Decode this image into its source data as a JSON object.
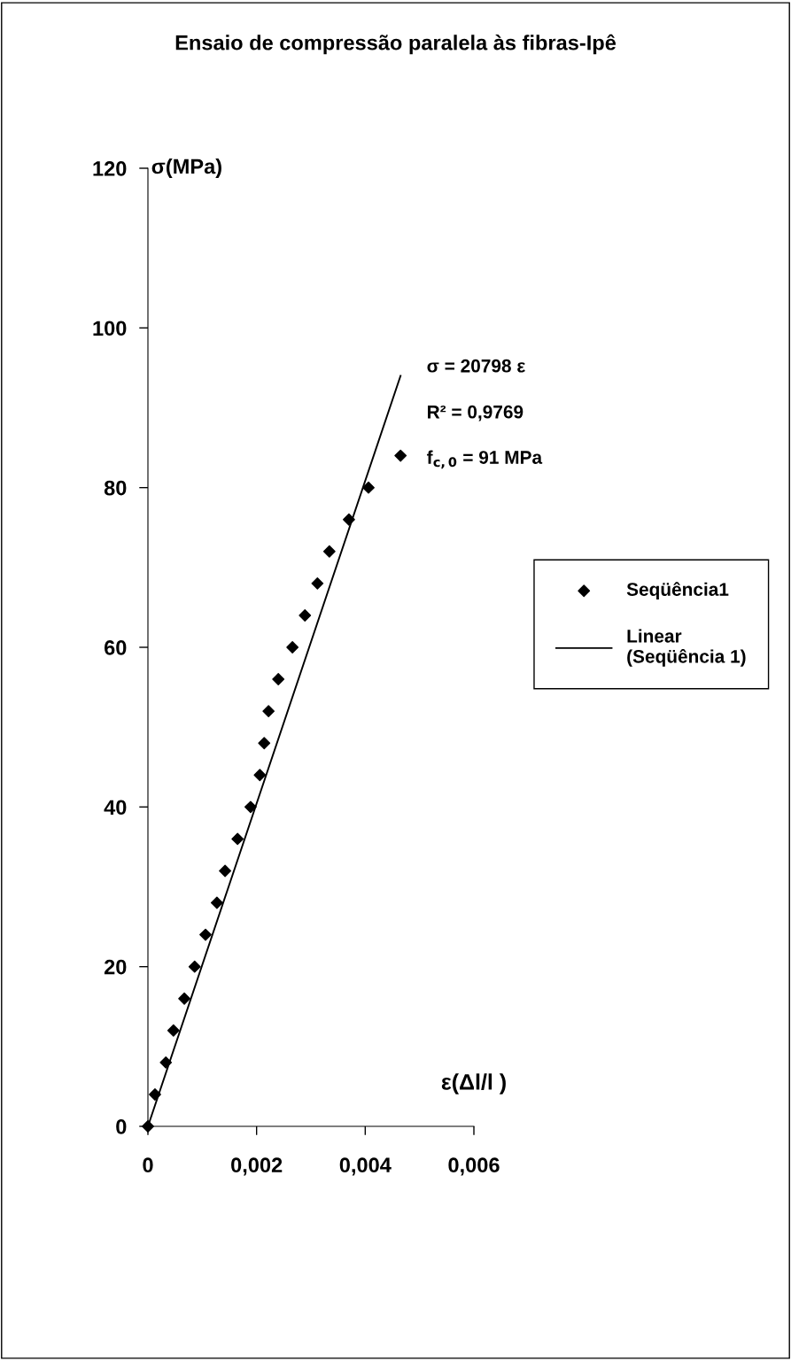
{
  "chart_data": {
    "type": "scatter",
    "title": "Ensaio de compressão paralela às fibras-Ipê",
    "xlabel": "ε(Δl/l )",
    "ylabel": "σ(MPa)",
    "series": [
      {
        "name": "Seqüência1",
        "color": "#000000",
        "marker": "diamond",
        "x": [
          0,
          0.00013,
          0.00033,
          0.00047,
          0.00067,
          0.00086,
          0.00106,
          0.00127,
          0.00142,
          0.00165,
          0.00189,
          0.00206,
          0.00214,
          0.00222,
          0.0024,
          0.00266,
          0.00289,
          0.00312,
          0.00334,
          0.0037,
          0.00406,
          0.00465
        ],
        "values": [
          0,
          4,
          8,
          12,
          16,
          20,
          24,
          28,
          32,
          36,
          40,
          44,
          48,
          52,
          56,
          60,
          64,
          68,
          72,
          76,
          80,
          84
        ]
      },
      {
        "name": "Linear\n(Seqüência 1)",
        "type": "line",
        "color": "#000000",
        "line_style": "solid",
        "x": [
          0,
          0.00465
        ],
        "values": [
          0,
          94
        ]
      }
    ],
    "annotations": [
      "σ = 20798 ε",
      "R² = 0,9769",
      "f$_{c,0}$ = 91 MPa"
    ],
    "xlim": [
      0,
      0.006
    ],
    "ylim": [
      0,
      120
    ],
    "xticks": [
      {
        "value": 0,
        "label": "0"
      },
      {
        "value": 0.002,
        "label": "0,002"
      },
      {
        "value": 0.004,
        "label": "0,004"
      },
      {
        "value": 0.006,
        "label": "0,006"
      }
    ],
    "yticks": [
      0,
      20,
      40,
      60,
      80,
      100,
      120
    ],
    "grid": false,
    "legend": "right"
  }
}
